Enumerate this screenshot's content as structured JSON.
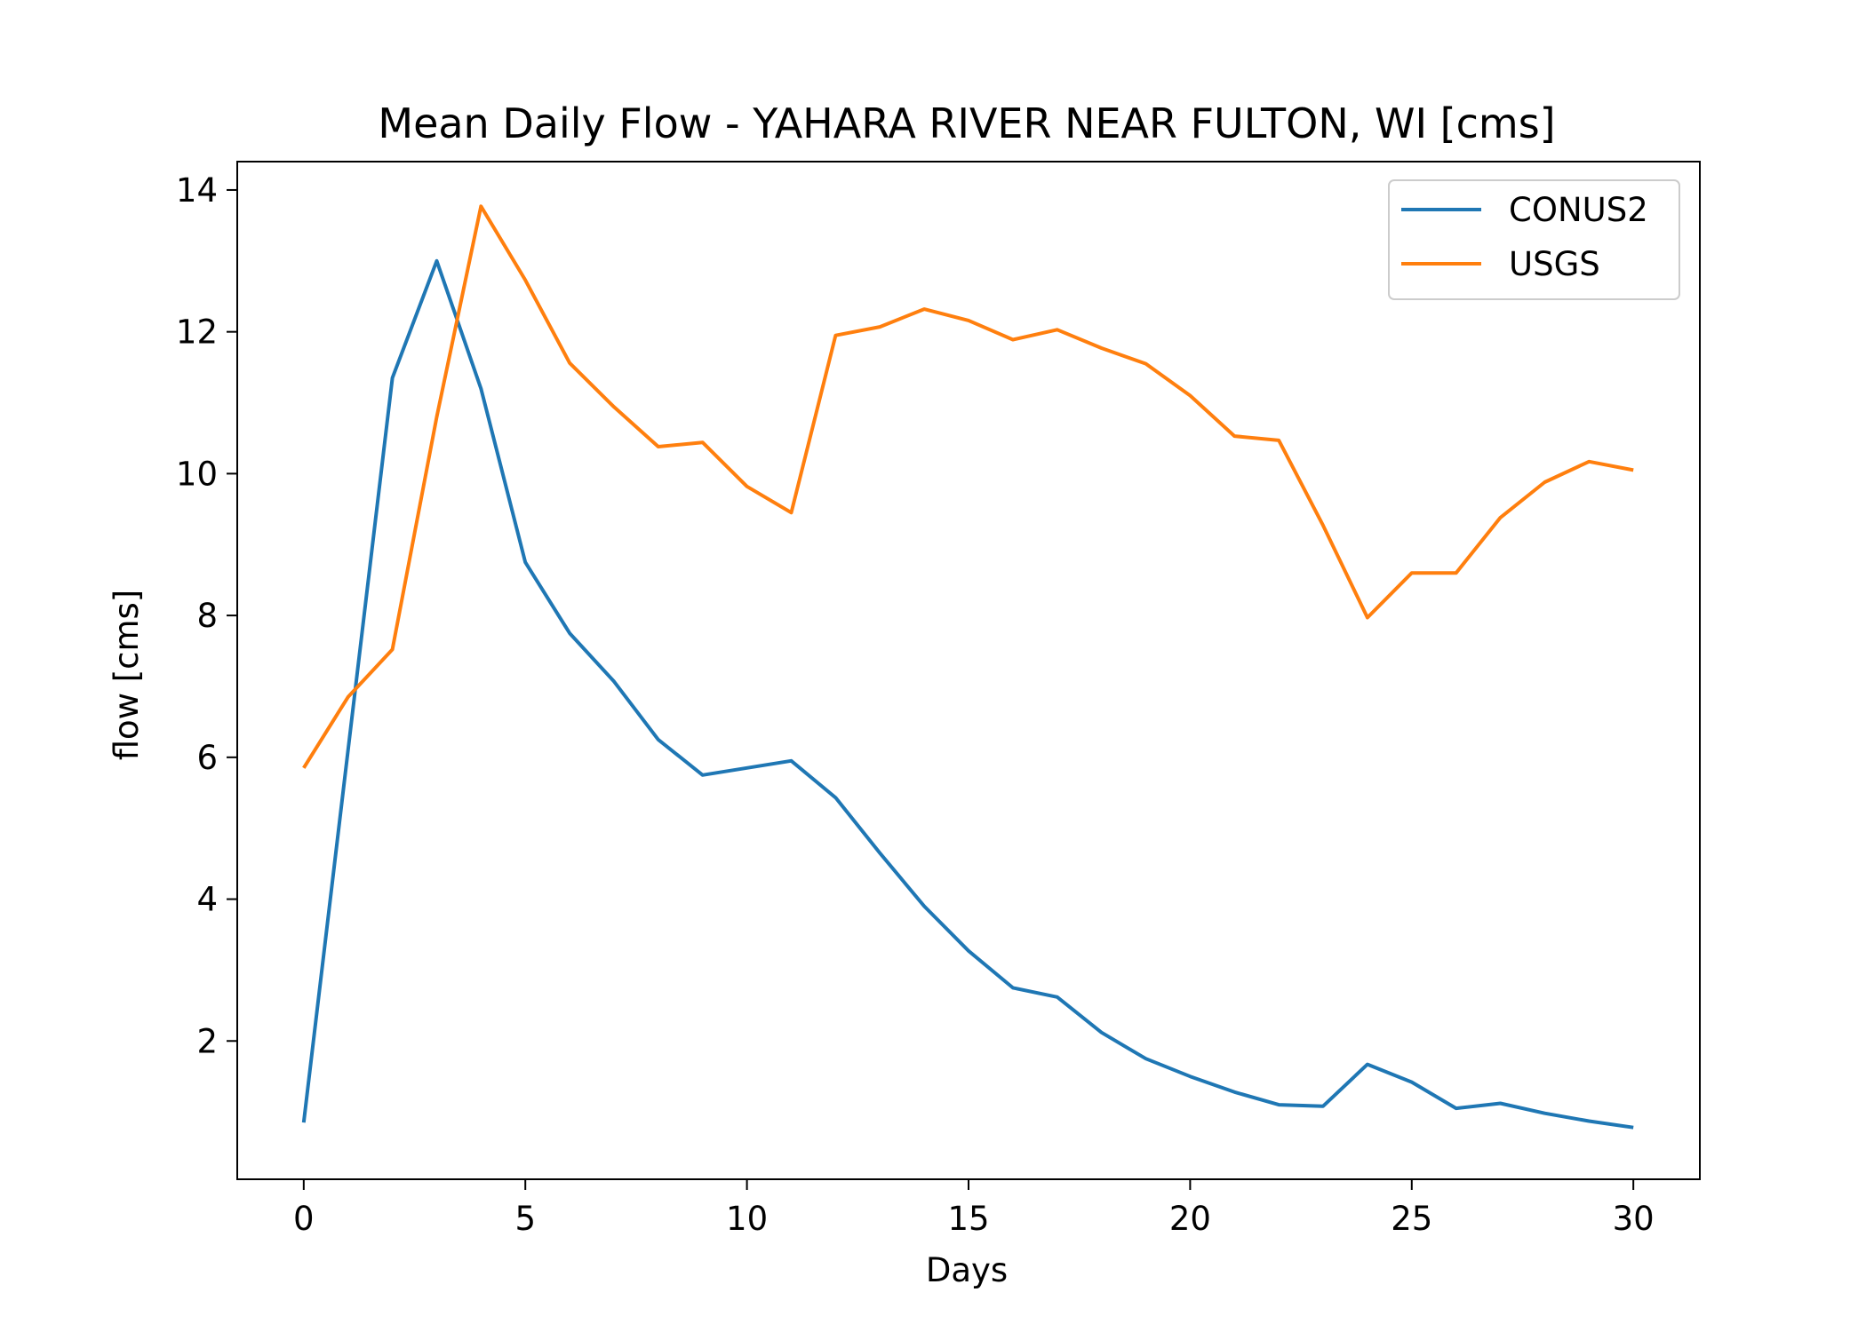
{
  "chart_data": {
    "type": "line",
    "title": "Mean Daily Flow - YAHARA RIVER NEAR FULTON, WI [cms]",
    "xlabel": "Days",
    "ylabel": "flow [cms]",
    "xlim": [
      -1.5,
      31.5
    ],
    "ylim": [
      0.05,
      14.4
    ],
    "xticks": [
      0,
      5,
      10,
      15,
      20,
      25,
      30
    ],
    "yticks": [
      2,
      4,
      6,
      8,
      10,
      12,
      14
    ],
    "grid": false,
    "legend_position": "top-right",
    "x": [
      0,
      1,
      2,
      3,
      4,
      5,
      6,
      7,
      8,
      9,
      10,
      11,
      12,
      13,
      14,
      15,
      16,
      17,
      18,
      19,
      20,
      21,
      22,
      23,
      24,
      25,
      26,
      27,
      28,
      29,
      30
    ],
    "series": [
      {
        "name": "CONUS2",
        "color": "#1f77b4",
        "values": [
          0.85,
          6.1,
          11.35,
          13.0,
          11.2,
          8.75,
          7.75,
          7.07,
          6.25,
          5.75,
          5.85,
          5.95,
          5.43,
          4.65,
          3.9,
          3.27,
          2.75,
          2.62,
          2.12,
          1.75,
          1.5,
          1.28,
          1.1,
          1.08,
          1.67,
          1.42,
          1.05,
          1.12,
          0.98,
          0.87,
          0.78
        ]
      },
      {
        "name": "USGS",
        "color": "#ff7f0e",
        "values": [
          5.85,
          6.85,
          7.52,
          10.8,
          13.77,
          12.73,
          11.56,
          10.94,
          10.38,
          10.44,
          9.82,
          9.45,
          11.95,
          12.07,
          12.32,
          12.16,
          11.89,
          12.03,
          11.77,
          11.55,
          11.1,
          10.53,
          10.47,
          9.27,
          7.97,
          8.6,
          8.6,
          9.38,
          9.88,
          10.17,
          10.05
        ]
      }
    ]
  }
}
